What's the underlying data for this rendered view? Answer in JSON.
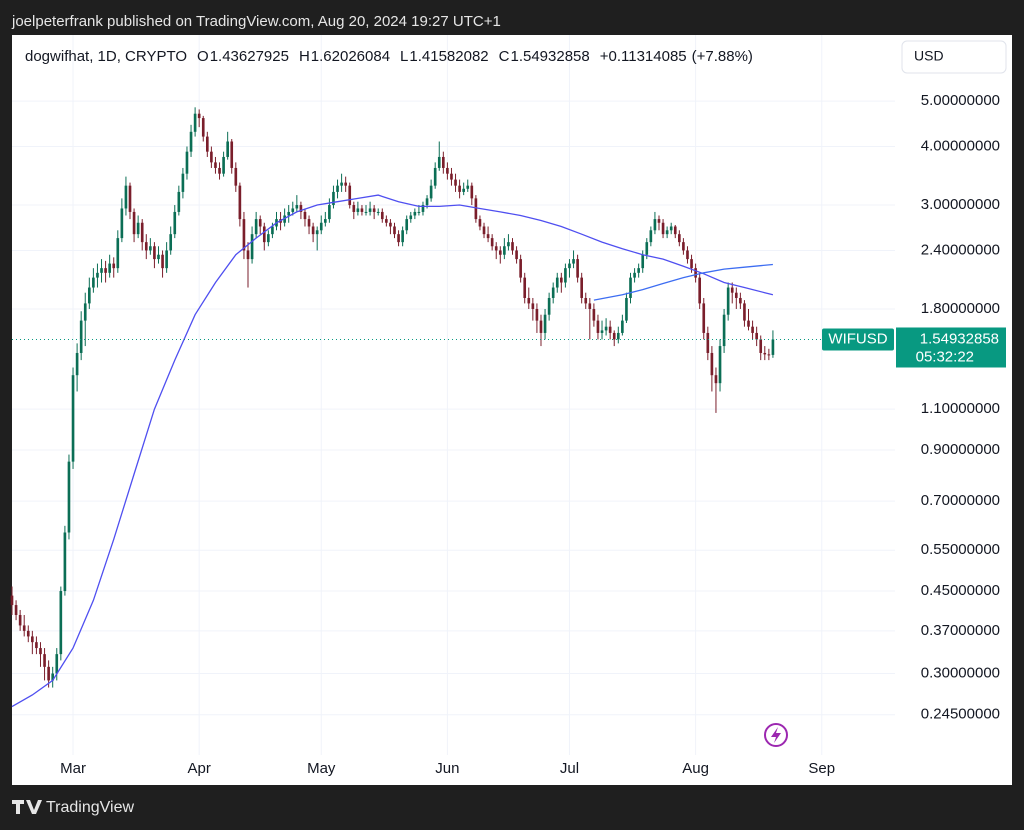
{
  "header": {
    "text": "joelpeterfrank published on TradingView.com, Aug 20, 2024 19:27 UTC+1"
  },
  "footer": {
    "brand": "TradingView"
  },
  "chart_data": {
    "type": "candlestick",
    "legend_text": "dogwifhat, 1D, CRYPTO",
    "ohlc_labels": [
      "O",
      "H",
      "L",
      "C"
    ],
    "change": {
      "value": 0.11314085,
      "label": "+0.11314085"
    },
    "change_pct": {
      "value": 7.88,
      "label": "(+7.88%)"
    },
    "currency": "USD",
    "symbol": "WIFUSD",
    "countdown": "05:32:22",
    "log_scale": true,
    "grid": true,
    "up_color": "#0b6e55",
    "down_color": "#7a1e2b",
    "last_price_color": "#089981",
    "xlim": [
      0,
      217
    ],
    "ylim": [
      0.201,
      6.92
    ],
    "xticks": [
      {
        "value": 15,
        "label": "Mar"
      },
      {
        "value": 46,
        "label": "Apr"
      },
      {
        "value": 76,
        "label": "May"
      },
      {
        "value": 107,
        "label": "Jun"
      },
      {
        "value": 137,
        "label": "Jul"
      },
      {
        "value": 168,
        "label": "Aug"
      },
      {
        "value": 199,
        "label": "Sep"
      }
    ],
    "yticks": [
      {
        "value": 5,
        "label": "5.00000000"
      },
      {
        "value": 4,
        "label": "4.00000000"
      },
      {
        "value": 3,
        "label": "3.00000000"
      },
      {
        "value": 2.4,
        "label": "2.40000000"
      },
      {
        "value": 1.8,
        "label": "1.80000000"
      },
      {
        "value": 1.1,
        "label": "1.10000000"
      },
      {
        "value": 0.9,
        "label": "0.90000000"
      },
      {
        "value": 0.7,
        "label": "0.70000000"
      },
      {
        "value": 0.55,
        "label": "0.55000000"
      },
      {
        "value": 0.45,
        "label": "0.45000000"
      },
      {
        "value": 0.37,
        "label": "0.37000000"
      },
      {
        "value": 0.3,
        "label": "0.30000000"
      },
      {
        "value": 0.245,
        "label": "0.24500000"
      }
    ],
    "candles": [
      [
        0.44,
        0.46,
        0.4,
        0.42
      ],
      [
        0.42,
        0.43,
        0.39,
        0.4
      ],
      [
        0.4,
        0.41,
        0.37,
        0.38
      ],
      [
        0.38,
        0.4,
        0.36,
        0.37
      ],
      [
        0.37,
        0.38,
        0.35,
        0.36
      ],
      [
        0.36,
        0.37,
        0.33,
        0.35
      ],
      [
        0.35,
        0.36,
        0.33,
        0.34
      ],
      [
        0.34,
        0.35,
        0.31,
        0.33
      ],
      [
        0.33,
        0.34,
        0.29,
        0.31
      ],
      [
        0.31,
        0.32,
        0.28,
        0.29
      ],
      [
        0.29,
        0.31,
        0.28,
        0.3
      ],
      [
        0.3,
        0.34,
        0.29,
        0.33
      ],
      [
        0.33,
        0.46,
        0.32,
        0.45
      ],
      [
        0.45,
        0.62,
        0.44,
        0.6
      ],
      [
        0.6,
        0.88,
        0.58,
        0.85
      ],
      [
        0.85,
        1.35,
        0.82,
        1.3
      ],
      [
        1.3,
        1.52,
        1.2,
        1.45
      ],
      [
        1.45,
        1.78,
        1.4,
        1.7
      ],
      [
        1.7,
        1.95,
        1.5,
        1.85
      ],
      [
        1.85,
        2.1,
        1.8,
        2.0
      ],
      [
        2.0,
        2.2,
        1.95,
        2.1
      ],
      [
        2.1,
        2.25,
        2.0,
        2.15
      ],
      [
        2.15,
        2.3,
        2.05,
        2.2
      ],
      [
        2.2,
        2.28,
        2.05,
        2.15
      ],
      [
        2.15,
        2.35,
        2.1,
        2.25
      ],
      [
        2.25,
        2.32,
        2.1,
        2.2
      ],
      [
        2.2,
        2.65,
        2.15,
        2.55
      ],
      [
        2.55,
        3.1,
        2.5,
        2.95
      ],
      [
        2.95,
        3.45,
        2.85,
        3.3
      ],
      [
        3.3,
        3.35,
        2.8,
        2.9
      ],
      [
        2.9,
        2.95,
        2.5,
        2.6
      ],
      [
        2.6,
        2.85,
        2.55,
        2.75
      ],
      [
        2.75,
        2.8,
        2.4,
        2.5
      ],
      [
        2.5,
        2.6,
        2.3,
        2.4
      ],
      [
        2.4,
        2.55,
        2.35,
        2.45
      ],
      [
        2.45,
        2.5,
        2.2,
        2.3
      ],
      [
        2.3,
        2.45,
        2.25,
        2.35
      ],
      [
        2.35,
        2.4,
        2.1,
        2.2
      ],
      [
        2.2,
        2.5,
        2.15,
        2.4
      ],
      [
        2.4,
        2.7,
        2.35,
        2.6
      ],
      [
        2.6,
        3.0,
        2.55,
        2.9
      ],
      [
        2.9,
        3.3,
        2.85,
        3.2
      ],
      [
        3.2,
        3.6,
        3.1,
        3.5
      ],
      [
        3.5,
        4.0,
        3.4,
        3.9
      ],
      [
        3.9,
        4.45,
        3.8,
        4.3
      ],
      [
        4.3,
        4.85,
        4.2,
        4.7
      ],
      [
        4.7,
        4.8,
        4.4,
        4.6
      ],
      [
        4.6,
        4.65,
        4.1,
        4.2
      ],
      [
        4.2,
        4.3,
        3.8,
        3.9
      ],
      [
        3.9,
        4.0,
        3.6,
        3.7
      ],
      [
        3.7,
        3.8,
        3.5,
        3.6
      ],
      [
        3.6,
        3.7,
        3.4,
        3.5
      ],
      [
        3.5,
        3.9,
        3.45,
        3.8
      ],
      [
        3.8,
        4.3,
        3.75,
        4.1
      ],
      [
        4.1,
        4.15,
        3.5,
        3.6
      ],
      [
        3.6,
        3.7,
        3.2,
        3.3
      ],
      [
        3.3,
        3.35,
        2.7,
        2.8
      ],
      [
        2.8,
        2.9,
        2.3,
        2.4
      ],
      [
        2.4,
        2.5,
        2.0,
        2.3
      ],
      [
        2.3,
        2.7,
        2.25,
        2.6
      ],
      [
        2.6,
        2.9,
        2.55,
        2.8
      ],
      [
        2.8,
        2.85,
        2.6,
        2.7
      ],
      [
        2.7,
        2.75,
        2.4,
        2.5
      ],
      [
        2.5,
        2.65,
        2.45,
        2.6
      ],
      [
        2.6,
        2.75,
        2.55,
        2.7
      ],
      [
        2.7,
        2.9,
        2.65,
        2.8
      ],
      [
        2.8,
        2.9,
        2.65,
        2.75
      ],
      [
        2.75,
        2.95,
        2.7,
        2.85
      ],
      [
        2.85,
        3.0,
        2.75,
        2.9
      ],
      [
        2.9,
        3.05,
        2.85,
        2.95
      ],
      [
        2.95,
        3.15,
        2.9,
        3.0
      ],
      [
        3.0,
        3.05,
        2.8,
        2.9
      ],
      [
        2.9,
        2.95,
        2.7,
        2.8
      ],
      [
        2.8,
        2.85,
        2.6,
        2.7
      ],
      [
        2.7,
        2.75,
        2.5,
        2.6
      ],
      [
        2.6,
        2.7,
        2.4,
        2.65
      ],
      [
        2.65,
        2.85,
        2.6,
        2.75
      ],
      [
        2.75,
        2.9,
        2.7,
        2.8
      ],
      [
        2.8,
        3.1,
        2.75,
        3.0
      ],
      [
        3.0,
        3.3,
        2.95,
        3.2
      ],
      [
        3.2,
        3.4,
        3.1,
        3.3
      ],
      [
        3.3,
        3.5,
        3.2,
        3.35
      ],
      [
        3.35,
        3.45,
        3.2,
        3.3
      ],
      [
        3.3,
        3.35,
        2.95,
        3.0
      ],
      [
        3.0,
        3.05,
        2.8,
        2.9
      ],
      [
        2.9,
        3.05,
        2.85,
        2.95
      ],
      [
        2.95,
        3.0,
        2.85,
        2.9
      ],
      [
        2.9,
        3.0,
        2.85,
        2.9
      ],
      [
        2.9,
        3.05,
        2.85,
        2.95
      ],
      [
        2.95,
        3.0,
        2.8,
        2.9
      ],
      [
        2.9,
        2.95,
        2.85,
        2.9
      ],
      [
        2.9,
        2.95,
        2.75,
        2.8
      ],
      [
        2.8,
        2.85,
        2.7,
        2.75
      ],
      [
        2.75,
        2.8,
        2.6,
        2.7
      ],
      [
        2.7,
        2.75,
        2.55,
        2.6
      ],
      [
        2.6,
        2.65,
        2.45,
        2.5
      ],
      [
        2.5,
        2.7,
        2.45,
        2.65
      ],
      [
        2.65,
        2.85,
        2.6,
        2.8
      ],
      [
        2.8,
        2.9,
        2.75,
        2.85
      ],
      [
        2.85,
        2.95,
        2.8,
        2.9
      ],
      [
        2.9,
        3.0,
        2.85,
        2.9
      ],
      [
        2.9,
        3.05,
        2.85,
        3.0
      ],
      [
        3.0,
        3.15,
        2.95,
        3.1
      ],
      [
        3.1,
        3.4,
        3.05,
        3.3
      ],
      [
        3.3,
        3.7,
        3.25,
        3.6
      ],
      [
        3.6,
        4.1,
        3.55,
        3.8
      ],
      [
        3.8,
        3.9,
        3.5,
        3.6
      ],
      [
        3.6,
        3.7,
        3.4,
        3.5
      ],
      [
        3.5,
        3.6,
        3.3,
        3.4
      ],
      [
        3.4,
        3.5,
        3.2,
        3.3
      ],
      [
        3.3,
        3.4,
        3.1,
        3.2
      ],
      [
        3.2,
        3.35,
        3.15,
        3.25
      ],
      [
        3.25,
        3.4,
        3.2,
        3.3
      ],
      [
        3.3,
        3.35,
        3.0,
        3.1
      ],
      [
        3.1,
        3.15,
        2.75,
        2.8
      ],
      [
        2.8,
        2.85,
        2.65,
        2.7
      ],
      [
        2.7,
        2.75,
        2.55,
        2.6
      ],
      [
        2.6,
        2.7,
        2.5,
        2.55
      ],
      [
        2.55,
        2.6,
        2.4,
        2.45
      ],
      [
        2.45,
        2.5,
        2.3,
        2.4
      ],
      [
        2.4,
        2.45,
        2.25,
        2.35
      ],
      [
        2.35,
        2.55,
        2.3,
        2.45
      ],
      [
        2.45,
        2.6,
        2.4,
        2.5
      ],
      [
        2.5,
        2.55,
        2.35,
        2.4
      ],
      [
        2.4,
        2.45,
        2.25,
        2.3
      ],
      [
        2.3,
        2.35,
        2.05,
        2.1
      ],
      [
        2.1,
        2.15,
        1.85,
        1.9
      ],
      [
        1.9,
        2.0,
        1.8,
        1.85
      ],
      [
        1.85,
        1.9,
        1.7,
        1.8
      ],
      [
        1.8,
        1.85,
        1.6,
        1.7
      ],
      [
        1.7,
        1.75,
        1.5,
        1.6
      ],
      [
        1.6,
        1.8,
        1.55,
        1.75
      ],
      [
        1.75,
        1.95,
        1.7,
        1.9
      ],
      [
        1.9,
        2.05,
        1.85,
        2.0
      ],
      [
        2.0,
        2.15,
        1.95,
        2.1
      ],
      [
        2.1,
        2.15,
        1.95,
        2.05
      ],
      [
        2.05,
        2.25,
        2.0,
        2.2
      ],
      [
        2.2,
        2.3,
        2.1,
        2.25
      ],
      [
        2.25,
        2.4,
        2.2,
        2.3
      ],
      [
        2.3,
        2.35,
        2.05,
        2.1
      ],
      [
        2.1,
        2.15,
        1.85,
        1.9
      ],
      [
        1.9,
        1.95,
        1.8,
        1.85
      ],
      [
        1.85,
        1.9,
        1.55,
        1.8
      ],
      [
        1.8,
        1.85,
        1.65,
        1.7
      ],
      [
        1.7,
        1.75,
        1.55,
        1.6
      ],
      [
        1.6,
        1.7,
        1.55,
        1.62
      ],
      [
        1.62,
        1.72,
        1.58,
        1.65
      ],
      [
        1.65,
        1.7,
        1.55,
        1.6
      ],
      [
        1.6,
        1.62,
        1.5,
        1.55
      ],
      [
        1.55,
        1.65,
        1.52,
        1.6
      ],
      [
        1.6,
        1.75,
        1.58,
        1.7
      ],
      [
        1.7,
        1.95,
        1.68,
        1.9
      ],
      [
        1.9,
        2.15,
        1.85,
        2.1
      ],
      [
        2.1,
        2.2,
        2.05,
        2.15
      ],
      [
        2.15,
        2.25,
        2.1,
        2.2
      ],
      [
        2.2,
        2.4,
        2.15,
        2.35
      ],
      [
        2.35,
        2.55,
        2.3,
        2.5
      ],
      [
        2.5,
        2.7,
        2.45,
        2.65
      ],
      [
        2.65,
        2.9,
        2.6,
        2.8
      ],
      [
        2.8,
        2.85,
        2.65,
        2.75
      ],
      [
        2.75,
        2.8,
        2.55,
        2.6
      ],
      [
        2.6,
        2.7,
        2.55,
        2.65
      ],
      [
        2.65,
        2.75,
        2.6,
        2.7
      ],
      [
        2.7,
        2.72,
        2.55,
        2.6
      ],
      [
        2.6,
        2.65,
        2.45,
        2.5
      ],
      [
        2.5,
        2.55,
        2.35,
        2.4
      ],
      [
        2.4,
        2.45,
        2.25,
        2.3
      ],
      [
        2.3,
        2.35,
        2.15,
        2.2
      ],
      [
        2.2,
        2.25,
        2.05,
        2.1
      ],
      [
        2.1,
        2.15,
        1.8,
        1.85
      ],
      [
        1.85,
        1.9,
        1.55,
        1.6
      ],
      [
        1.6,
        1.65,
        1.4,
        1.45
      ],
      [
        1.45,
        1.5,
        1.2,
        1.3
      ],
      [
        1.3,
        1.35,
        1.08,
        1.25
      ],
      [
        1.25,
        1.55,
        1.2,
        1.5
      ],
      [
        1.5,
        1.8,
        1.45,
        1.75
      ],
      [
        1.75,
        2.05,
        1.7,
        2.0
      ],
      [
        2.0,
        2.05,
        1.85,
        1.95
      ],
      [
        1.95,
        2.0,
        1.8,
        1.9
      ],
      [
        1.9,
        1.95,
        1.8,
        1.85
      ],
      [
        1.85,
        1.88,
        1.65,
        1.7
      ],
      [
        1.7,
        1.8,
        1.62,
        1.65
      ],
      [
        1.65,
        1.7,
        1.55,
        1.6
      ],
      [
        1.6,
        1.65,
        1.5,
        1.55
      ],
      [
        1.55,
        1.58,
        1.4,
        1.45
      ],
      [
        1.45,
        1.5,
        1.4,
        1.44
      ],
      [
        1.44,
        1.48,
        1.4,
        1.436
      ],
      [
        1.43627925,
        1.62026084,
        1.41582082,
        1.54932858
      ]
    ],
    "lines": [
      {
        "color": "#4f4ff0",
        "x": [
          0,
          5,
          10,
          15,
          20,
          25,
          30,
          35,
          40,
          45,
          50,
          55,
          60,
          65,
          70,
          75,
          80,
          85,
          90,
          95,
          100,
          105,
          110,
          115,
          120,
          125,
          130,
          135,
          140,
          145,
          150,
          155,
          160,
          165,
          170,
          175,
          180,
          185,
          187
        ],
        "values": [
          0.255,
          0.27,
          0.29,
          0.34,
          0.43,
          0.58,
          0.8,
          1.1,
          1.4,
          1.75,
          2.05,
          2.35,
          2.55,
          2.75,
          2.9,
          3.0,
          3.05,
          3.1,
          3.15,
          3.05,
          2.98,
          2.98,
          3.0,
          2.95,
          2.9,
          2.85,
          2.78,
          2.7,
          2.6,
          2.5,
          2.42,
          2.35,
          2.3,
          2.22,
          2.14,
          2.05,
          2.0,
          1.95,
          1.93
        ]
      },
      {
        "color": "#3d6df2",
        "x": [
          143,
          150,
          155,
          160,
          165,
          170,
          175,
          180,
          187
        ],
        "values": [
          1.88,
          1.93,
          1.98,
          2.04,
          2.1,
          2.15,
          2.19,
          2.21,
          2.24
        ]
      }
    ]
  }
}
